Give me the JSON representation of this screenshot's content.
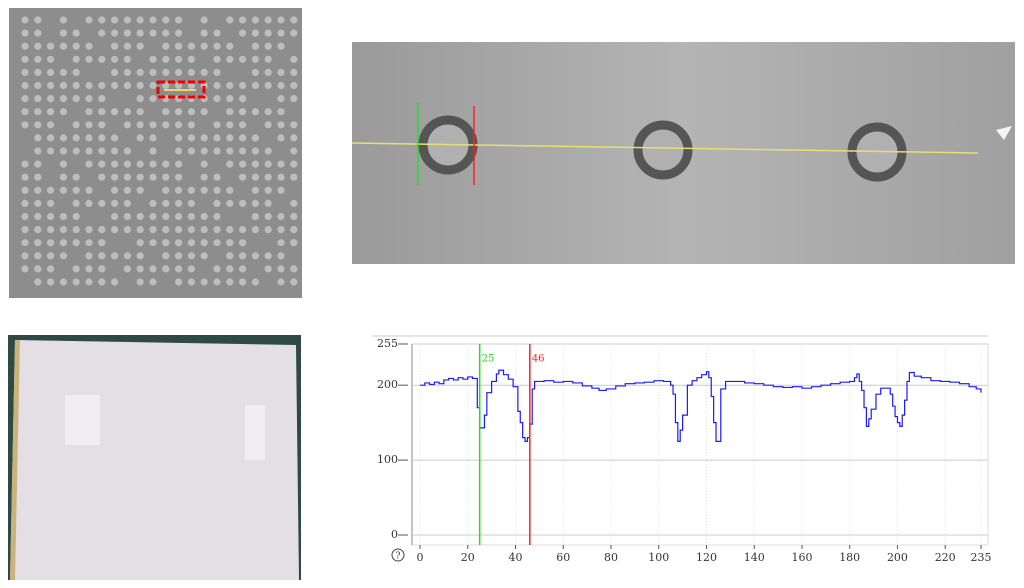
{
  "chart_data": {
    "type": "line",
    "step": true,
    "grid": true,
    "x": [
      0,
      2,
      4,
      6,
      8,
      10,
      12,
      14,
      16,
      18,
      20,
      22,
      24,
      25,
      27,
      28,
      30,
      32,
      33,
      35,
      37,
      39,
      41,
      42,
      43,
      44,
      45,
      46,
      47,
      48,
      52,
      56,
      60,
      64,
      68,
      72,
      75,
      78,
      82,
      86,
      90,
      94,
      98,
      102,
      105,
      106,
      107,
      108,
      109,
      110,
      112,
      114,
      116,
      118,
      120,
      121,
      122,
      123,
      124,
      126,
      128,
      132,
      136,
      140,
      144,
      148,
      152,
      156,
      160,
      164,
      168,
      172,
      176,
      180,
      182,
      183,
      184,
      185,
      186,
      187,
      188,
      189,
      191,
      193,
      195,
      197,
      198,
      199,
      200,
      201,
      202,
      203,
      204,
      205,
      207,
      210,
      214,
      218,
      222,
      226,
      230,
      233,
      235
    ],
    "series": [
      {
        "color": "#1a1aff",
        "values": [
          200,
          203,
          201,
          204,
          202,
          207,
          209,
          207,
          210,
          208,
          211,
          209,
          170,
          143,
          160,
          190,
          205,
          215,
          220,
          214,
          208,
          198,
          165,
          150,
          130,
          125,
          130,
          148,
          195,
          205,
          206,
          204,
          205,
          203,
          199,
          196,
          193,
          195,
          199,
          202,
          203,
          204,
          206,
          205,
          200,
          188,
          150,
          125,
          140,
          160,
          200,
          206,
          210,
          214,
          218,
          210,
          185,
          150,
          125,
          195,
          205,
          205,
          203,
          202,
          200,
          198,
          197,
          198,
          196,
          198,
          200,
          202,
          204,
          205,
          210,
          215,
          205,
          193,
          170,
          145,
          155,
          168,
          188,
          196,
          196,
          188,
          172,
          158,
          150,
          145,
          160,
          180,
          205,
          217,
          212,
          210,
          206,
          205,
          204,
          202,
          198,
          195,
          190
        ]
      }
    ],
    "xlim": [
      0,
      235
    ],
    "ylim": [
      0,
      255
    ],
    "xticks": [
      0,
      20,
      40,
      60,
      80,
      100,
      120,
      140,
      160,
      180,
      200,
      220,
      235
    ],
    "yticks": [
      0,
      100,
      200,
      255
    ],
    "markers": [
      {
        "value": 25,
        "color": "#22dd22"
      },
      {
        "value": 46,
        "color": "#ff2020"
      }
    ]
  }
}
